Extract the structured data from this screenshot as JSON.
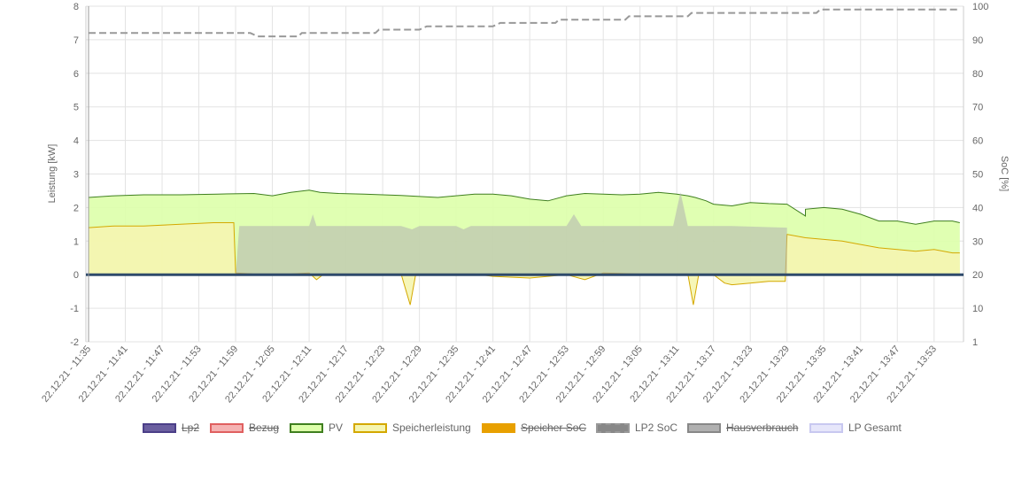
{
  "chart_data": {
    "type": "line",
    "title": "",
    "ylabel_left": "Leistung [kW]",
    "ylabel_right": "SoC [%]",
    "ylim_left": [
      -2,
      8
    ],
    "ylim_right": [
      0,
      100
    ],
    "yticks_left": [
      "8",
      "7",
      "6",
      "5",
      "4",
      "3",
      "2",
      "1",
      "0",
      "-1",
      "-2"
    ],
    "yticks_right": [
      "100",
      "90",
      "80",
      "70",
      "60",
      "50",
      "40",
      "30",
      "20",
      "10",
      "1"
    ],
    "xticks": [
      "22.12.21 - 11:35",
      "22.12.21 - 11:41",
      "22.12.21 - 11:47",
      "22.12.21 - 11:53",
      "22.12.21 - 11:59",
      "22.12.21 - 12:05",
      "22.12.21 - 12:11",
      "22.12.21 - 12:17",
      "22.12.21 - 12:23",
      "22.12.21 - 12:29",
      "22.12.21 - 12:35",
      "22.12.21 - 12:41",
      "22.12.21 - 12:47",
      "22.12.21 - 12:53",
      "22.12.21 - 12:59",
      "22.12.21 - 13:05",
      "22.12.21 - 13:11",
      "22.12.21 - 13:17",
      "22.12.21 - 13:23",
      "22.12.21 - 13:29",
      "22.12.21 - 13:35",
      "22.12.21 - 13:41",
      "22.12.21 - 13:47",
      "22.12.21 - 13:53"
    ],
    "grid": true,
    "legend_position": "bottom",
    "series": [
      {
        "name": "Lp2",
        "hidden": true,
        "fill": "#6b5fa0",
        "stroke": "#4b3f88",
        "axis": "left",
        "style": "solid",
        "values": []
      },
      {
        "name": "Bezug",
        "hidden": true,
        "fill": "#f5b3b3",
        "stroke": "#e06060",
        "axis": "left",
        "style": "solid",
        "values": []
      },
      {
        "name": "PV",
        "hidden": false,
        "fill": "#ddffaa",
        "stroke": "#3f7f1f",
        "axis": "left",
        "style": "area",
        "x": [
          0,
          0.7,
          1.5,
          2.5,
          3.5,
          4.5,
          5,
          5.5,
          6,
          6.3,
          6.8,
          7.5,
          8.5,
          9.5,
          10.5,
          11,
          11.5,
          12,
          12.5,
          13,
          13.5,
          14,
          14.5,
          15,
          15.5,
          16,
          16.3,
          16.5,
          16.8,
          17,
          17.5,
          18,
          18.5,
          19,
          19.5,
          19.5,
          20,
          20.5,
          21,
          21.5,
          22,
          22.5,
          23,
          23.5,
          23.7
        ],
        "values": [
          2.3,
          2.35,
          2.38,
          2.38,
          2.4,
          2.42,
          2.35,
          2.45,
          2.52,
          2.45,
          2.42,
          2.4,
          2.36,
          2.3,
          2.4,
          2.4,
          2.35,
          2.25,
          2.2,
          2.35,
          2.42,
          2.4,
          2.38,
          2.4,
          2.45,
          2.4,
          2.35,
          2.3,
          2.2,
          2.1,
          2.05,
          2.15,
          2.12,
          2.1,
          1.75,
          1.95,
          2.0,
          1.95,
          1.8,
          1.6,
          1.6,
          1.5,
          1.6,
          1.6,
          1.55
        ]
      },
      {
        "name": "Speicherleistung",
        "hidden": false,
        "fill": "#f5f5b0",
        "stroke": "#d4a800",
        "axis": "left",
        "style": "area",
        "x": [
          0,
          0.7,
          1.5,
          2.5,
          3.4,
          3.95,
          4.0,
          4.5,
          5.5,
          6.0,
          6.2,
          6.4,
          7.5,
          8.5,
          8.75,
          8.9,
          9.5,
          10.5,
          11,
          12,
          12.5,
          13,
          13.5,
          14,
          15,
          15.5,
          16.3,
          16.45,
          16.6,
          17,
          17.3,
          17.5,
          18,
          18.5,
          18.95,
          19.0,
          19.5,
          20,
          20.5,
          21,
          21.5,
          22,
          22.5,
          23,
          23.5,
          23.7
        ],
        "values": [
          1.4,
          1.45,
          1.45,
          1.5,
          1.55,
          1.55,
          0.05,
          0.02,
          0.02,
          0.05,
          -0.15,
          0.02,
          0.02,
          0.02,
          -0.9,
          0.02,
          0.02,
          0.02,
          -0.05,
          -0.1,
          -0.05,
          0.0,
          -0.15,
          0.05,
          0.02,
          0.02,
          0.02,
          -0.9,
          0.02,
          0.0,
          -0.25,
          -0.3,
          -0.25,
          -0.2,
          -0.2,
          1.2,
          1.1,
          1.05,
          1.0,
          0.9,
          0.8,
          0.75,
          0.7,
          0.75,
          0.65,
          0.65
        ]
      },
      {
        "name": "Speicher SoC",
        "hidden": true,
        "fill": "#e8a000",
        "stroke": "#e8a000",
        "axis": "right",
        "style": "solid",
        "values": []
      },
      {
        "name": "LP2 SoC",
        "hidden": false,
        "fill": "#888888",
        "stroke": "#999999",
        "axis": "right",
        "style": "dashed",
        "x": [
          0,
          4.4,
          4.6,
          5.7,
          5.8,
          7.8,
          7.9,
          9.0,
          9.2,
          11.0,
          11.2,
          12.7,
          12.8,
          14.6,
          14.7,
          16.3,
          16.4,
          19.8,
          19.9,
          23.7
        ],
        "values": [
          92,
          92,
          91,
          91,
          92,
          92,
          93,
          93,
          94,
          94,
          95,
          95,
          96,
          96,
          97,
          97,
          98,
          98,
          99,
          99
        ]
      },
      {
        "name": "Hausverbrauch",
        "hidden": true,
        "fill": "#b0b0b0",
        "stroke": "#888888",
        "axis": "left",
        "style": "area",
        "x": [
          4.0,
          4.1,
          6.0,
          6.1,
          6.2,
          6.3,
          8.5,
          8.8,
          9.0,
          10.0,
          10.2,
          10.4,
          13.0,
          13.2,
          13.4,
          15.5,
          15.9,
          16.1,
          16.3,
          16.5,
          17.5,
          19.0,
          19.0
        ],
        "values": [
          0,
          1.45,
          1.45,
          1.8,
          1.45,
          1.45,
          1.45,
          1.35,
          1.45,
          1.45,
          1.35,
          1.45,
          1.45,
          1.8,
          1.45,
          1.45,
          1.45,
          2.45,
          1.45,
          1.45,
          1.45,
          1.4,
          0
        ]
      },
      {
        "name": "LP Gesamt",
        "hidden": false,
        "fill": "#e6e6fa",
        "stroke": "#c8c8f0",
        "axis": "left",
        "style": "solid",
        "values": [
          0
        ]
      }
    ]
  }
}
